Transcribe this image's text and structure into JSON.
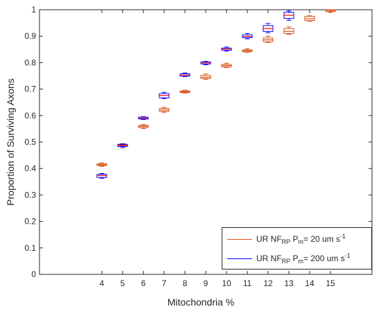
{
  "chart_data": {
    "type": "box",
    "xlabel": "Mitochondria %",
    "ylabel": "Proportion of Surviving Axons",
    "ylim": [
      0,
      1
    ],
    "xlim": [
      1,
      17
    ],
    "yticks": [
      0,
      0.1,
      0.2,
      0.3,
      0.4,
      0.5,
      0.6,
      0.7,
      0.8,
      0.9,
      1
    ],
    "ytick_labels": [
      "0",
      "0.1",
      "0.2",
      "0.3",
      "0.4",
      "0.5",
      "0.6",
      "0.7",
      "0.8",
      "0.9",
      "1"
    ],
    "xticks": [
      4,
      5,
      6,
      7,
      8,
      9,
      10,
      11,
      12,
      13,
      14,
      15
    ],
    "xtick_labels": [
      "4",
      "5",
      "6",
      "7",
      "8",
      "9",
      "10",
      "11",
      "12",
      "13",
      "14",
      "15"
    ],
    "grid": false,
    "legend_position": "bottom-right",
    "series": [
      {
        "color": "#D95319",
        "legend": {
          "prefix": "UR NF",
          "sub1": "RP",
          "mid": " P",
          "sub2": "m",
          "unit": "= 20 um s",
          "sup": "-1"
        },
        "boxes": [
          {
            "x": 4,
            "min": 0.408,
            "q1": 0.411,
            "median": 0.414,
            "q3": 0.418,
            "max": 0.421
          },
          {
            "x": 5,
            "min": 0.484,
            "q1": 0.487,
            "median": 0.49,
            "q3": 0.492,
            "max": 0.494
          },
          {
            "x": 6,
            "min": 0.551,
            "q1": 0.555,
            "median": 0.559,
            "q3": 0.563,
            "max": 0.566
          },
          {
            "x": 7,
            "min": 0.612,
            "q1": 0.616,
            "median": 0.621,
            "q3": 0.627,
            "max": 0.631
          },
          {
            "x": 8,
            "min": 0.685,
            "q1": 0.687,
            "median": 0.69,
            "q3": 0.693,
            "max": 0.696
          },
          {
            "x": 9,
            "min": 0.737,
            "q1": 0.74,
            "median": 0.745,
            "q3": 0.752,
            "max": 0.757
          },
          {
            "x": 10,
            "min": 0.781,
            "q1": 0.784,
            "median": 0.789,
            "q3": 0.793,
            "max": 0.798
          },
          {
            "x": 11,
            "min": 0.839,
            "q1": 0.841,
            "median": 0.845,
            "q3": 0.848,
            "max": 0.852
          },
          {
            "x": 12,
            "min": 0.876,
            "q1": 0.879,
            "median": 0.886,
            "q3": 0.893,
            "max": 0.9
          },
          {
            "x": 13,
            "min": 0.907,
            "q1": 0.91,
            "median": 0.918,
            "q3": 0.929,
            "max": 0.935
          },
          {
            "x": 14,
            "min": 0.956,
            "q1": 0.959,
            "median": 0.966,
            "q3": 0.975,
            "max": 0.977
          },
          {
            "x": 15,
            "min": 0.99,
            "q1": 0.993,
            "median": 0.997,
            "q3": 1.0,
            "max": 1.0
          }
        ]
      },
      {
        "color": "#0000FF",
        "median_color": "#FF0000",
        "legend": {
          "prefix": "UR NF",
          "sub1": "RP",
          "mid": " P",
          "sub2": "m",
          "unit": "= 200 um s",
          "sup": "-1"
        },
        "boxes": [
          {
            "x": 4,
            "min": 0.363,
            "q1": 0.366,
            "median": 0.373,
            "q3": 0.378,
            "max": 0.381
          },
          {
            "x": 5,
            "min": 0.479,
            "q1": 0.483,
            "median": 0.487,
            "q3": 0.49,
            "max": 0.493
          },
          {
            "x": 6,
            "min": 0.585,
            "q1": 0.587,
            "median": 0.59,
            "q3": 0.594,
            "max": 0.596
          },
          {
            "x": 7,
            "min": 0.664,
            "q1": 0.667,
            "median": 0.676,
            "q3": 0.683,
            "max": 0.688
          },
          {
            "x": 8,
            "min": 0.747,
            "q1": 0.749,
            "median": 0.753,
            "q3": 0.758,
            "max": 0.761
          },
          {
            "x": 9,
            "min": 0.792,
            "q1": 0.795,
            "median": 0.799,
            "q3": 0.803,
            "max": 0.805
          },
          {
            "x": 10,
            "min": 0.843,
            "q1": 0.847,
            "median": 0.851,
            "q3": 0.855,
            "max": 0.859
          },
          {
            "x": 11,
            "min": 0.89,
            "q1": 0.894,
            "median": 0.899,
            "q3": 0.905,
            "max": 0.91
          },
          {
            "x": 12,
            "min": 0.913,
            "q1": 0.918,
            "median": 0.929,
            "q3": 0.94,
            "max": 0.948
          },
          {
            "x": 13,
            "min": 0.96,
            "q1": 0.967,
            "median": 0.979,
            "q3": 0.99,
            "max": 0.995
          }
        ]
      }
    ]
  }
}
